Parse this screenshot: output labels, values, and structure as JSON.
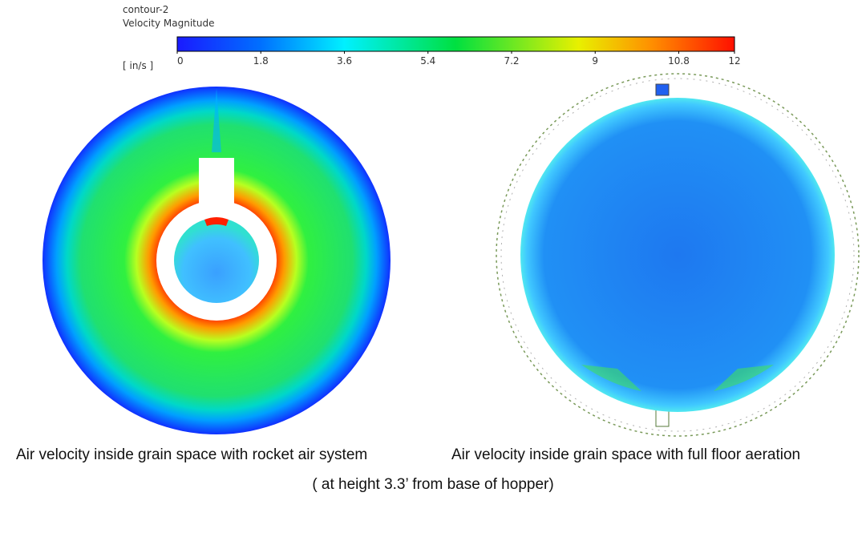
{
  "legend": {
    "title": "contour-2",
    "quantity": "Velocity Magnitude",
    "unit": "[ in/s ]",
    "range": [
      0,
      12
    ],
    "ticks": [
      0,
      1.8,
      3.6,
      5.4,
      7.2,
      9,
      10.8,
      12
    ]
  },
  "captions": {
    "left": "Air velocity inside grain space with rocket air system",
    "right": "Air velocity inside grain space with full floor aeration",
    "note": "( at height 3.3’ from base of hopper)"
  }
}
